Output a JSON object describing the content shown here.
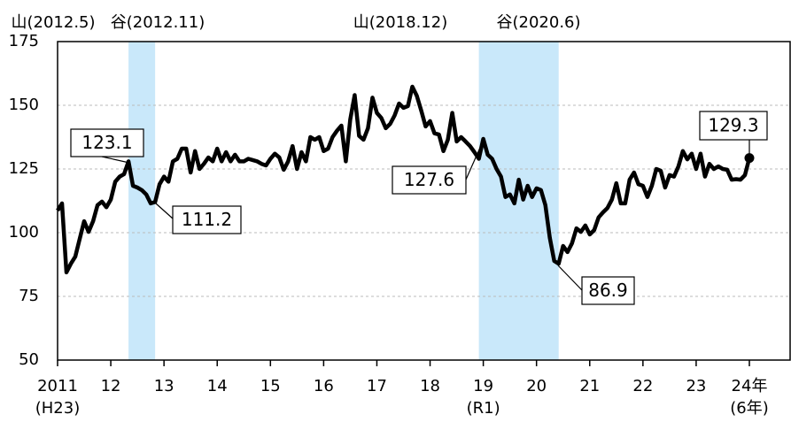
{
  "chart_data": {
    "type": "line",
    "color": "#000000",
    "band_color": "#c9e8fa",
    "grid": true,
    "ylim": [
      50,
      175
    ],
    "yticks": [
      50,
      75,
      100,
      125,
      150,
      175
    ],
    "cycle_marks": [
      {
        "peak": "山(2012.5)",
        "trough": "谷(2012.11)"
      },
      {
        "peak": "山(2018.12)",
        "trough": "谷(2020.6)"
      }
    ],
    "callouts": [
      "123.1",
      "111.2",
      "127.6",
      "86.9",
      "129.3"
    ],
    "categories": [
      "2011\n(H23)",
      null,
      null,
      null,
      null,
      null,
      null,
      null,
      null,
      null,
      null,
      null,
      "12",
      null,
      null,
      null,
      null,
      null,
      null,
      null,
      null,
      null,
      null,
      null,
      "13",
      null,
      null,
      null,
      null,
      null,
      null,
      null,
      null,
      null,
      null,
      null,
      "14",
      null,
      null,
      null,
      null,
      null,
      null,
      null,
      null,
      null,
      null,
      null,
      "15",
      null,
      null,
      null,
      null,
      null,
      null,
      null,
      null,
      null,
      null,
      null,
      "16",
      null,
      null,
      null,
      null,
      null,
      null,
      null,
      null,
      null,
      null,
      null,
      "17",
      null,
      null,
      null,
      null,
      null,
      null,
      null,
      null,
      null,
      null,
      null,
      "18",
      null,
      null,
      null,
      null,
      null,
      null,
      null,
      null,
      null,
      null,
      null,
      "19\n(R1)",
      null,
      null,
      null,
      null,
      null,
      null,
      null,
      null,
      null,
      null,
      null,
      "20",
      null,
      null,
      null,
      null,
      null,
      null,
      null,
      null,
      null,
      null,
      null,
      "21",
      null,
      null,
      null,
      null,
      null,
      null,
      null,
      null,
      null,
      null,
      null,
      "22",
      null,
      null,
      null,
      null,
      null,
      null,
      null,
      null,
      null,
      null,
      null,
      "23",
      null,
      null,
      null,
      null,
      null,
      null,
      null,
      null,
      null,
      null,
      null,
      "24年\n(6年)"
    ],
    "values": [
      108.7,
      111.5,
      84.4,
      87.8,
      90.6,
      97.6,
      104.5,
      100.3,
      104.5,
      110.8,
      112.2,
      110,
      113,
      120,
      122,
      123,
      128,
      118.4,
      117.7,
      116.7,
      115,
      111.5,
      112,
      119,
      122,
      120,
      128,
      129,
      133,
      133,
      123.6,
      132,
      125,
      127,
      129.5,
      128,
      133,
      128,
      131.6,
      128,
      130.6,
      128,
      128,
      129,
      128.5,
      128,
      127,
      126.4,
      129,
      131,
      129.5,
      124.7,
      128,
      134,
      125,
      131.6,
      128,
      137.5,
      136.5,
      137.5,
      132,
      133,
      137.5,
      140,
      142,
      128,
      144.4,
      154,
      138,
      136.5,
      141,
      153,
      147,
      145,
      141,
      142.7,
      146,
      150.7,
      149,
      149.7,
      157.3,
      153.8,
      148,
      141.7,
      143.8,
      139,
      138.5,
      132,
      136.5,
      147,
      135.8,
      137.5,
      135.8,
      134,
      131.6,
      129,
      136.8,
      130.6,
      129,
      125,
      122,
      114,
      115,
      111.5,
      120.8,
      113,
      118.4,
      114,
      117.4,
      116.7,
      110.8,
      98,
      88.9,
      87.8,
      94.8,
      92.4,
      95.8,
      101.7,
      100.3,
      102.8,
      99.3,
      101,
      106,
      108,
      109.7,
      113,
      119.4,
      111.5,
      111.5,
      120.8,
      123.6,
      119,
      118.4,
      114,
      118.4,
      125,
      124.3,
      117.7,
      122.6,
      122,
      126,
      132,
      128.8,
      131,
      125,
      131,
      122,
      127,
      125,
      126,
      125,
      124.7,
      120.8,
      121,
      120.8,
      122.6,
      129.3
    ]
  }
}
